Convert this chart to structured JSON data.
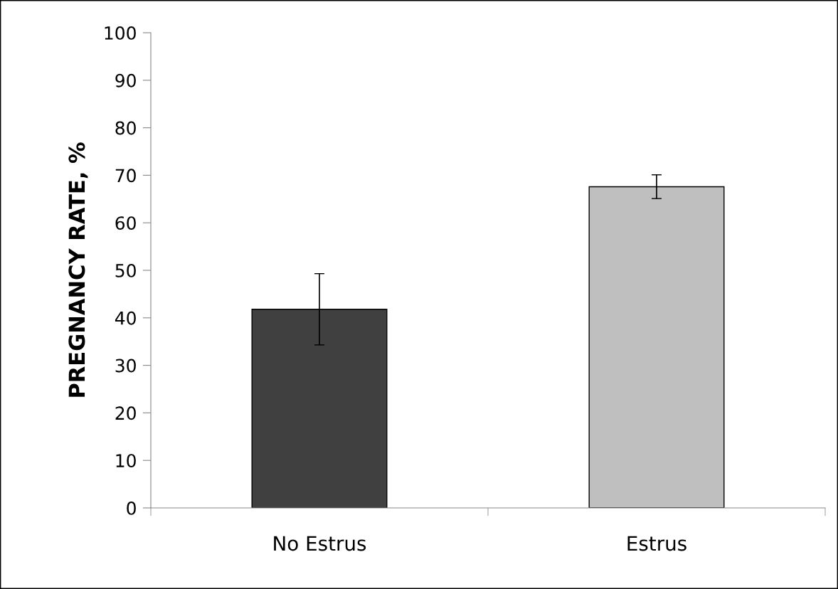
{
  "chart_data": {
    "type": "bar",
    "ylabel": "PREGNANCY RATE, %",
    "categories": [
      "No Estrus",
      "Estrus"
    ],
    "values": [
      41.8,
      67.6
    ],
    "colors": [
      "#404040",
      "#bfbfbf"
    ],
    "errors": [
      7.5,
      2.5
    ],
    "ylim": [
      0,
      100
    ],
    "yticks": [
      0,
      10,
      20,
      30,
      40,
      50,
      60,
      70,
      80,
      90,
      100
    ],
    "grid": false
  }
}
